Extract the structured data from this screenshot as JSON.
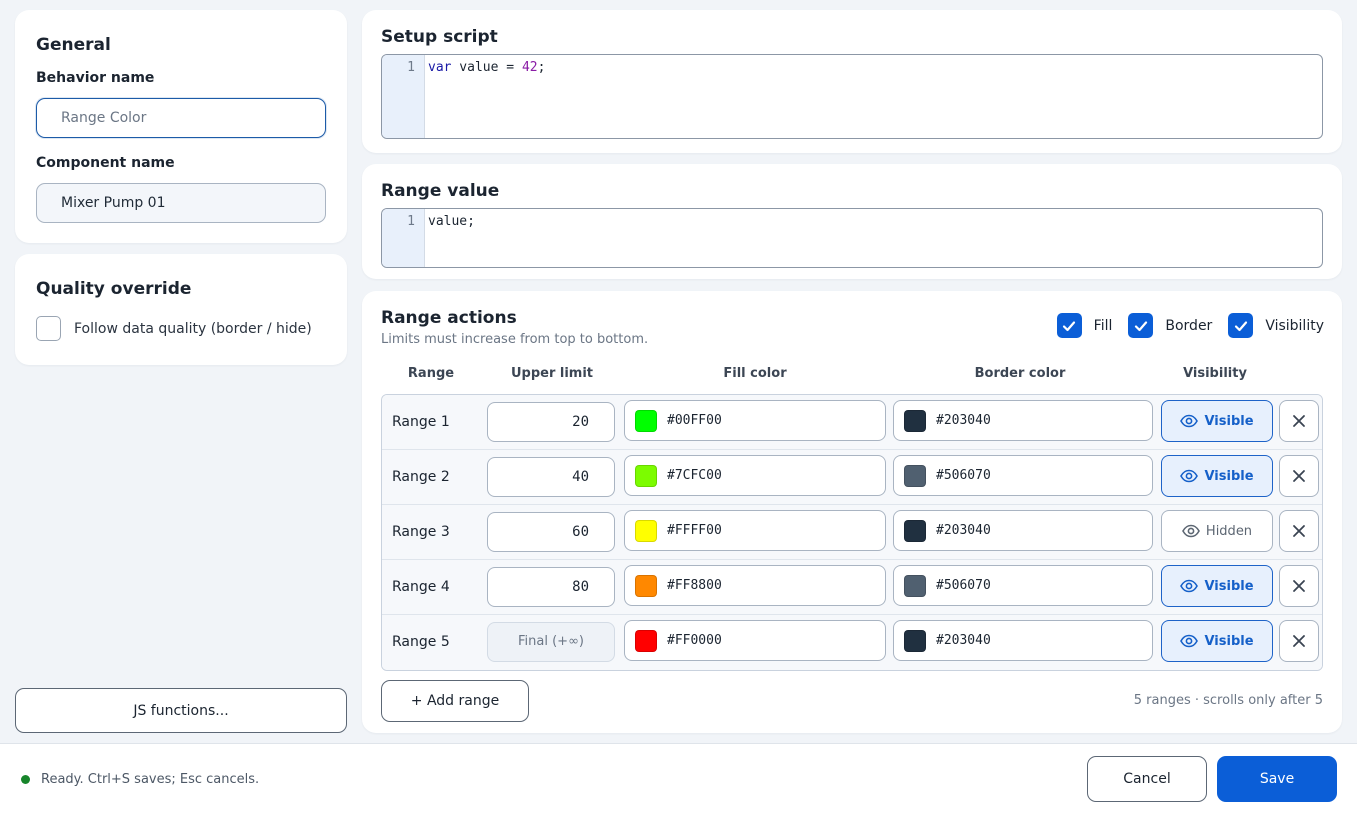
{
  "general": {
    "title": "General",
    "behavior_label": "Behavior name",
    "behavior_placeholder": "Range Color",
    "component_label": "Component name",
    "component_value": "Mixer Pump 01"
  },
  "quality": {
    "title": "Quality override",
    "checkbox_label": "Follow data quality (border / hide)",
    "checked": false
  },
  "js_functions_label": "JS functions...",
  "setup_script": {
    "title": "Setup script",
    "line_number": "1",
    "code_keyword": "var",
    "code_mid": " value = ",
    "code_number": "42",
    "code_end": ";"
  },
  "range_value": {
    "title": "Range value",
    "line_number": "1",
    "code": "value;"
  },
  "range_actions": {
    "title": "Range actions",
    "subtitle": "Limits must increase from top to bottom.",
    "toggles": {
      "fill": "Fill",
      "border": "Border",
      "visibility": "Visibility"
    },
    "columns": {
      "range": "Range",
      "upper_limit": "Upper limit",
      "fill_color": "Fill color",
      "border_color": "Border color",
      "visibility": "Visibility"
    },
    "rows": [
      {
        "name": "Range 1",
        "limit": "20",
        "fill": "#00FF00",
        "border": "#203040",
        "visibility": "Visible",
        "visible": true
      },
      {
        "name": "Range 2",
        "limit": "40",
        "fill": "#7CFC00",
        "border": "#506070",
        "visibility": "Visible",
        "visible": true
      },
      {
        "name": "Range 3",
        "limit": "60",
        "fill": "#FFFF00",
        "border": "#203040",
        "visibility": "Hidden",
        "visible": false
      },
      {
        "name": "Range 4",
        "limit": "80",
        "fill": "#FF8800",
        "border": "#506070",
        "visibility": "Visible",
        "visible": true
      },
      {
        "name": "Range 5",
        "limit": "Final (+∞)",
        "fill": "#FF0000",
        "border": "#203040",
        "visibility": "Visible",
        "visible": true
      }
    ],
    "add_label": "+ Add range",
    "count_text": "5 ranges · scrolls only after 5"
  },
  "footer": {
    "status": "Ready. Ctrl+S saves; Esc cancels.",
    "cancel": "Cancel",
    "save": "Save"
  },
  "colors": {
    "accent": "#0b5ed7",
    "status_ok": "#17852b"
  }
}
